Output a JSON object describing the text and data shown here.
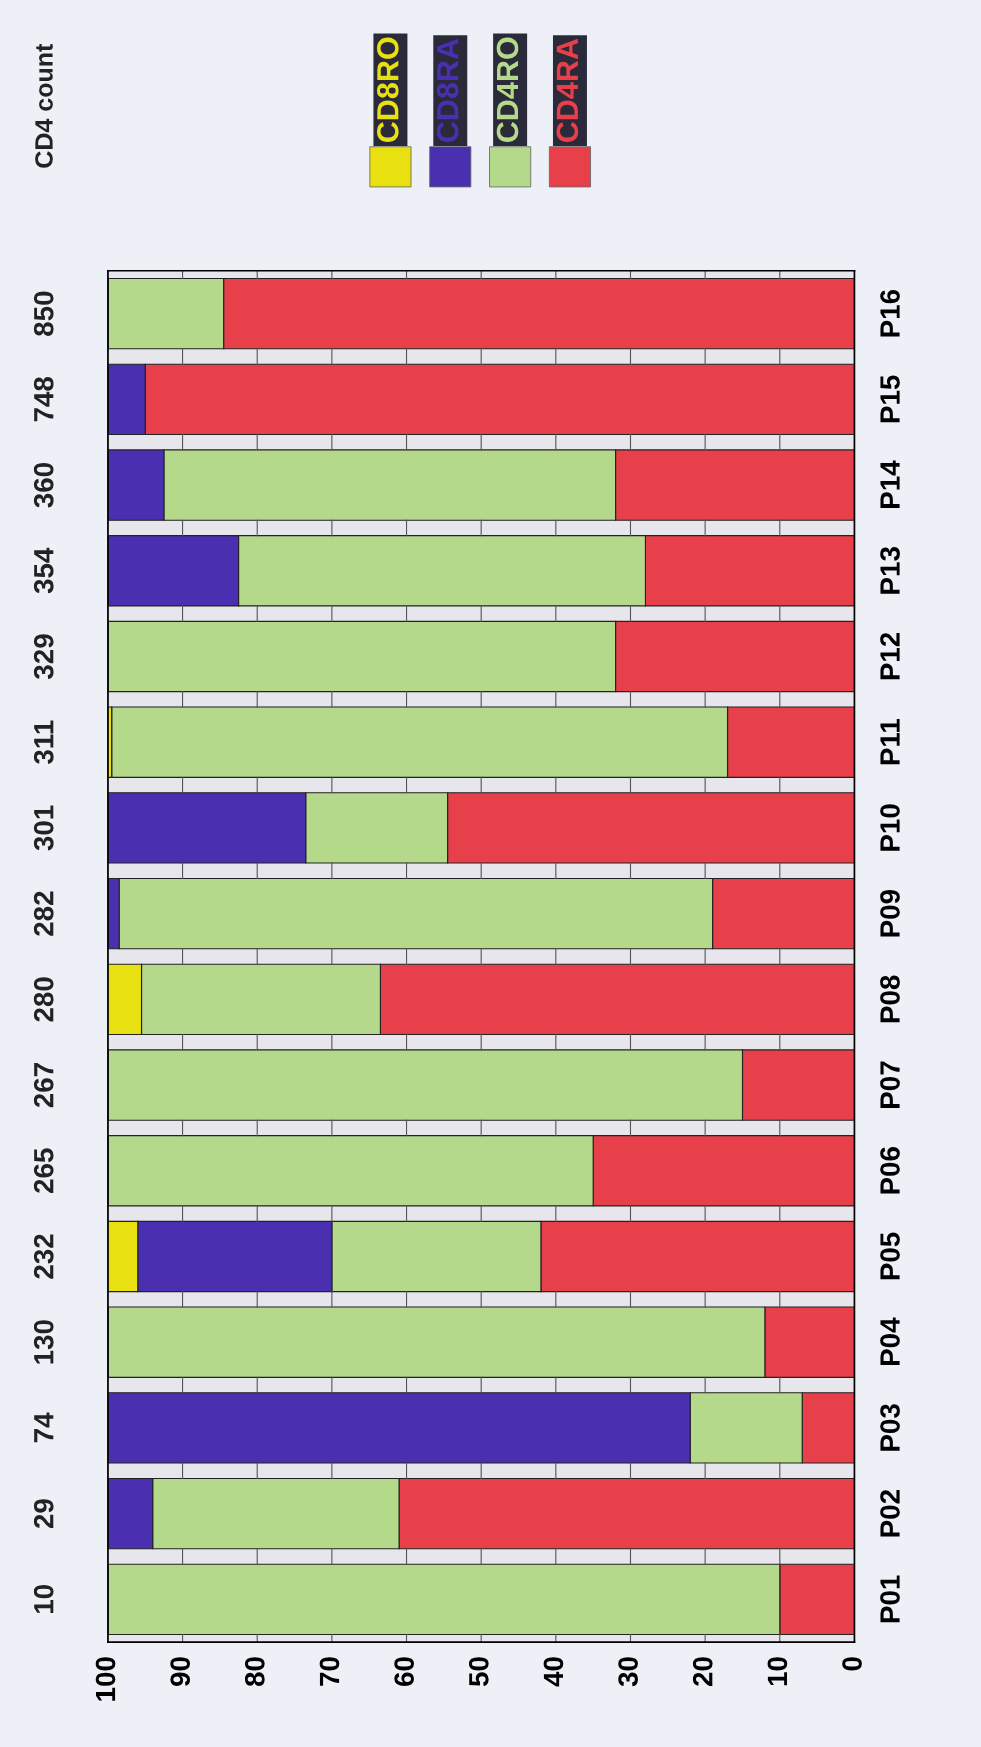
{
  "chart_data": {
    "type": "bar",
    "orientation": "horizontal",
    "stacked": true,
    "categories": [
      "P16",
      "P15",
      "P14",
      "P13",
      "P12",
      "P11",
      "P10",
      "P09",
      "P08",
      "P07",
      "P06",
      "P05",
      "P04",
      "P03",
      "P02",
      "P01"
    ],
    "series": [
      {
        "name": "CD4RA",
        "color": "#e8404a",
        "values": [
          84.5,
          95,
          32,
          28,
          32,
          17,
          54.5,
          19,
          63.5,
          15,
          35,
          42,
          12,
          7,
          61,
          10
        ]
      },
      {
        "name": "CD4RO",
        "color": "#b5d98a",
        "values": [
          15.5,
          null,
          60.5,
          54.5,
          68,
          82.5,
          19,
          79.5,
          32,
          85,
          65,
          28,
          88,
          15,
          33,
          90
        ]
      },
      {
        "name": "CD8RA",
        "color": "#4a2fb0",
        "values": [
          null,
          5,
          7.5,
          17.5,
          null,
          null,
          26.5,
          1.5,
          null,
          null,
          null,
          26,
          null,
          78,
          6,
          null
        ]
      },
      {
        "name": "CD8RO",
        "color": "#e8e010",
        "values": [
          null,
          null,
          null,
          null,
          null,
          0.5,
          null,
          null,
          4.5,
          null,
          null,
          4,
          null,
          null,
          null,
          null
        ]
      }
    ],
    "xlim": [
      100,
      0
    ],
    "xticks": [
      0,
      10,
      20,
      30,
      40,
      50,
      60,
      70,
      80,
      90,
      100
    ],
    "legend": "top",
    "annotations": [
      "CD4 count",
      "850",
      "748",
      "360",
      "354",
      "329",
      "311",
      "301",
      "282",
      "280",
      "267",
      "265",
      "232",
      "130",
      "74",
      "29",
      "10"
    ]
  }
}
